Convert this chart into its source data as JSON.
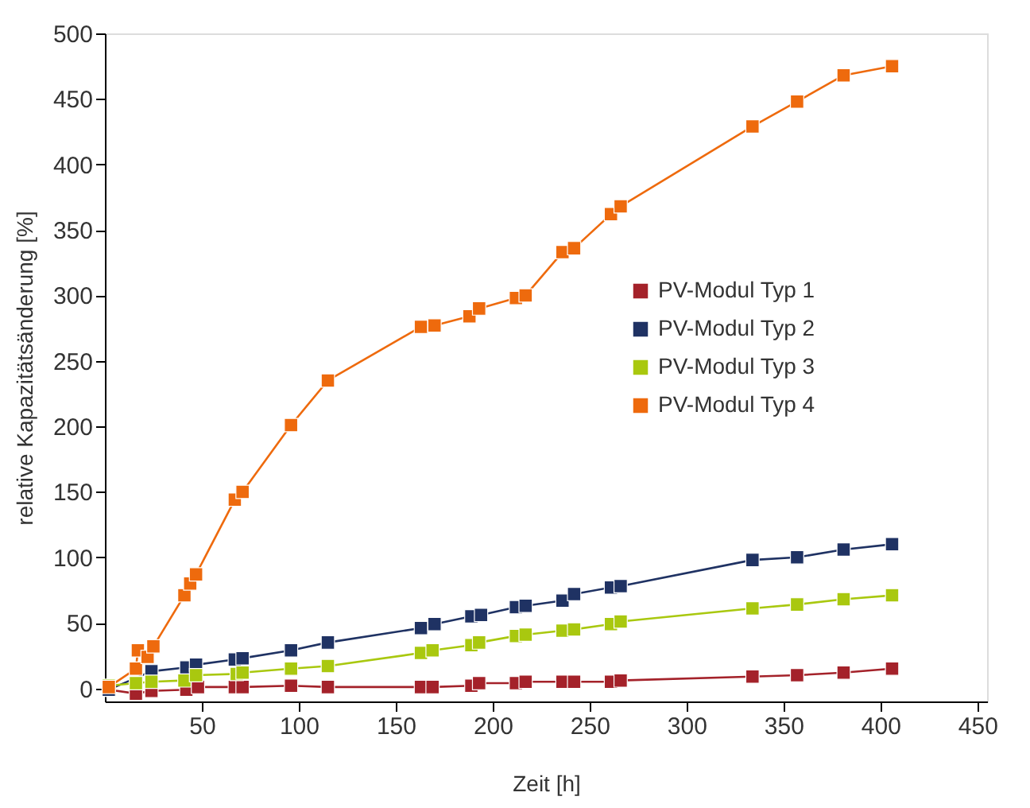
{
  "chart_data": {
    "type": "line",
    "xlabel": "Zeit [h]",
    "ylabel": "relative Kapazitätsänderung [%]",
    "xlim": [
      0,
      455
    ],
    "xticks": [
      50,
      100,
      150,
      200,
      250,
      300,
      350,
      400,
      450
    ],
    "ylim": [
      -10,
      500
    ],
    "yticks": [
      0,
      50,
      100,
      150,
      200,
      250,
      300,
      350,
      400,
      450,
      500
    ],
    "grid": false,
    "legend": "top right",
    "marker": "square",
    "line_style": "solid",
    "series": [
      {
        "name": "PV-Modul Typ 1",
        "color": "#a4222a",
        "x": [
          2,
          16,
          24,
          42,
          48,
          67,
          71,
          96,
          115,
          163,
          169,
          189,
          193,
          212,
          217,
          236,
          242,
          261,
          266,
          334,
          357,
          381,
          406
        ],
        "values": [
          -1,
          -4,
          -2,
          -1,
          1,
          1,
          1,
          2,
          1,
          1,
          1,
          2,
          4,
          4,
          5,
          5,
          5,
          5,
          6,
          9,
          10,
          12,
          15
        ]
      },
      {
        "name": "PV-Modul Typ 2",
        "color": "#1f3263",
        "x": [
          2,
          24,
          42,
          47,
          67,
          71,
          96,
          115,
          163,
          170,
          189,
          194,
          212,
          217,
          236,
          242,
          261,
          266,
          334,
          357,
          381,
          406
        ],
        "values": [
          -1,
          13,
          16,
          18,
          22,
          23,
          29,
          35,
          46,
          49,
          55,
          56,
          62,
          63,
          67,
          72,
          77,
          78,
          98,
          100,
          106,
          110
        ]
      },
      {
        "name": "PV-Modul Typ 3",
        "color": "#a9c80f",
        "x": [
          2,
          16,
          24,
          41,
          47,
          68,
          71,
          96,
          115,
          163,
          169,
          189,
          193,
          212,
          217,
          236,
          242,
          261,
          266,
          334,
          357,
          381,
          406
        ],
        "values": [
          2,
          4,
          5,
          6,
          10,
          11,
          12,
          15,
          17,
          27,
          29,
          33,
          35,
          40,
          41,
          44,
          45,
          49,
          51,
          61,
          64,
          68,
          71
        ]
      },
      {
        "name": "PV-Modul Typ 4",
        "color": "#ee6a0d",
        "x": [
          2,
          16,
          17,
          22,
          25,
          41,
          44,
          47,
          67,
          71,
          96,
          115,
          163,
          170,
          188,
          193,
          212,
          217,
          236,
          242,
          261,
          266,
          334,
          357,
          381,
          406
        ],
        "values": [
          1,
          15,
          29,
          24,
          32,
          71,
          80,
          87,
          144,
          150,
          201,
          235,
          276,
          277,
          284,
          290,
          298,
          300,
          333,
          336,
          362,
          368,
          429,
          448,
          468,
          475
        ]
      }
    ]
  }
}
